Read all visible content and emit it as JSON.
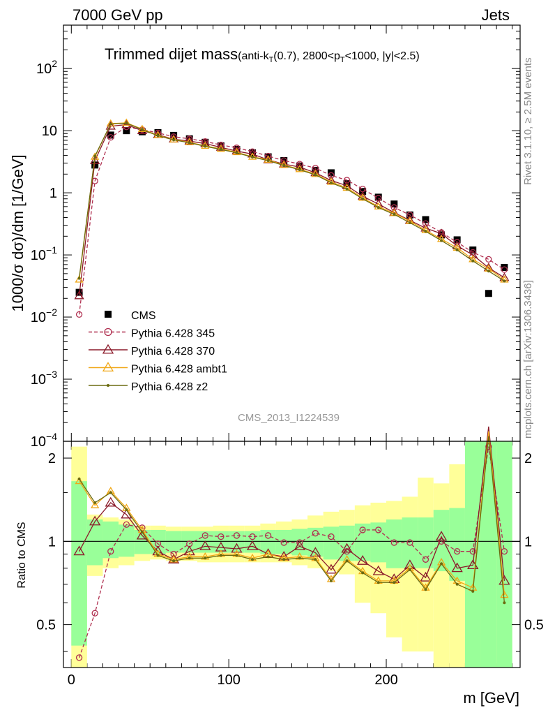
{
  "header": {
    "left": "7000 GeV pp",
    "right": "Jets"
  },
  "plot": {
    "title": "Trimmed dijet mass",
    "title_sub": "(anti-k",
    "title_sub_T": "T",
    "title_sub_rest": "(0.7), 2800<p",
    "title_sub_T2": "T",
    "title_sub_rest2": "<1000, |y|<2.5)",
    "ylabel": "1000/σ dσ)/dm [1/GeV]",
    "ratio_ylabel": "Ratio to CMS",
    "xlabel": "m [GeV]",
    "analysis_id": "CMS_2013_I1224539",
    "side_rivet": "Rivet 3.1.10, ≥ 2.5M events",
    "side_mcplots": "mcplots.cern.ch [arXiv:1306.3436]"
  },
  "legend": [
    {
      "label": "CMS",
      "color": "#000000",
      "marker": "square"
    },
    {
      "label": "Pythia 6.428 345",
      "color": "#b03050",
      "marker": "circle",
      "dashed": true
    },
    {
      "label": "Pythia 6.428 370",
      "color": "#8b1a2a",
      "marker": "triangle"
    },
    {
      "label": "Pythia 6.428 ambt1",
      "color": "#f0a818",
      "marker": "triangle"
    },
    {
      "label": "Pythia 6.428 z2",
      "color": "#6b6b10",
      "marker": "dot"
    }
  ],
  "chart_data": {
    "type": "line",
    "xlabel": "m [GeV]",
    "ylabel": "1000/σ dσ)/dm [1/GeV]",
    "yscale": "log",
    "xlim": [
      -5,
      285
    ],
    "ylim": [
      0.0001,
      500
    ],
    "x_ticks": [
      "0",
      "100",
      "200"
    ],
    "y_ticks": [
      "10^-4",
      "10^-3",
      "10^-2",
      "10^-1",
      "1",
      "10",
      "10^2"
    ],
    "x": [
      5,
      15,
      25,
      35,
      45,
      55,
      65,
      75,
      85,
      95,
      105,
      115,
      125,
      135,
      145,
      155,
      165,
      175,
      185,
      195,
      205,
      215,
      225,
      235,
      245,
      255,
      265,
      275
    ],
    "series": [
      {
        "name": "CMS",
        "values": [
          0.025,
          2.8,
          8.5,
          10.0,
          9.6,
          9.3,
          8.4,
          7.4,
          6.5,
          5.7,
          5.0,
          4.4,
          3.8,
          3.3,
          2.7,
          2.3,
          2.1,
          1.4,
          1.05,
          0.85,
          0.66,
          0.44,
          0.37,
          0.21,
          0.175,
          0.12,
          0.024,
          0.063
        ]
      },
      {
        "name": "Pythia 6.428 345",
        "values": [
          0.011,
          1.55,
          7.8,
          11.5,
          10.4,
          9.2,
          8.0,
          7.4,
          6.7,
          5.9,
          5.3,
          4.6,
          3.9,
          3.3,
          2.9,
          2.5,
          1.9,
          1.6,
          1.15,
          0.82,
          0.58,
          0.44,
          0.32,
          0.23,
          0.16,
          0.11,
          0.085,
          0.058
        ]
      },
      {
        "name": "Pythia 6.428 370",
        "values": [
          0.022,
          3.3,
          11.8,
          12.5,
          10.0,
          8.6,
          7.3,
          6.8,
          6.2,
          5.4,
          4.7,
          4.2,
          3.4,
          2.9,
          2.6,
          2.1,
          1.58,
          1.3,
          0.88,
          0.66,
          0.48,
          0.36,
          0.27,
          0.22,
          0.14,
          0.1,
          0.062,
          0.043
        ]
      },
      {
        "name": "Pythia 6.428 ambt1",
        "values": [
          0.04,
          3.8,
          13.0,
          13.4,
          10.6,
          8.4,
          7.2,
          6.5,
          5.7,
          5.1,
          4.5,
          3.8,
          3.4,
          2.8,
          2.4,
          2.0,
          1.5,
          1.2,
          0.83,
          0.6,
          0.47,
          0.35,
          0.25,
          0.18,
          0.13,
          0.085,
          0.06,
          0.04
        ]
      },
      {
        "name": "Pythia 6.428 z2",
        "values": [
          0.042,
          3.9,
          12.8,
          13.2,
          10.4,
          8.3,
          7.1,
          6.4,
          5.6,
          5.0,
          4.4,
          3.75,
          3.3,
          2.75,
          2.35,
          1.95,
          1.45,
          1.15,
          0.8,
          0.58,
          0.45,
          0.33,
          0.24,
          0.17,
          0.12,
          0.08,
          0.055,
          0.038
        ]
      }
    ],
    "ratio": {
      "ylabel": "Ratio to CMS",
      "ylim": [
        0.35,
        2.3
      ],
      "y_ticks": [
        "0.5",
        "1",
        "2"
      ],
      "band_green_lo": [
        0.42,
        0.82,
        0.87,
        0.88,
        0.9,
        0.9,
        0.91,
        0.91,
        0.91,
        0.91,
        0.91,
        0.91,
        0.9,
        0.9,
        0.89,
        0.88,
        0.86,
        0.85,
        0.85,
        0.84,
        0.8,
        0.8,
        0.8,
        0.78,
        0.72,
        0.3,
        0.3,
        0.3
      ],
      "band_green_hi": [
        1.65,
        1.2,
        1.18,
        1.15,
        1.1,
        1.1,
        1.09,
        1.09,
        1.09,
        1.09,
        1.09,
        1.09,
        1.1,
        1.1,
        1.11,
        1.12,
        1.13,
        1.14,
        1.16,
        1.17,
        1.2,
        1.22,
        1.22,
        1.3,
        1.32,
        2.3,
        2.3,
        2.3
      ],
      "band_yellow_lo": [
        0.3,
        0.75,
        0.8,
        0.82,
        0.85,
        0.86,
        0.85,
        0.85,
        0.84,
        0.84,
        0.84,
        0.84,
        0.84,
        0.84,
        0.82,
        0.8,
        0.78,
        0.76,
        0.6,
        0.55,
        0.45,
        0.4,
        0.4,
        0.3,
        0.3,
        0.3,
        0.3,
        0.3
      ],
      "band_yellow_hi": [
        2.2,
        1.25,
        1.22,
        1.2,
        1.14,
        1.14,
        1.13,
        1.13,
        1.13,
        1.14,
        1.14,
        1.14,
        1.16,
        1.18,
        1.2,
        1.24,
        1.28,
        1.3,
        1.35,
        1.38,
        1.4,
        1.45,
        1.7,
        1.62,
        1.9,
        1.75,
        2.3,
        2.3
      ],
      "series": [
        {
          "name": "Pythia 6.428 345",
          "values": [
            0.38,
            0.55,
            0.92,
            1.15,
            1.12,
            0.98,
            0.9,
            0.98,
            1.05,
            1.04,
            1.05,
            1.04,
            1.05,
            0.99,
            0.99,
            1.07,
            1.04,
            0.92,
            1.1,
            1.1,
            0.99,
            0.99,
            0.86,
            1.0,
            0.92,
            0.92,
            2.2,
            0.92
          ]
        },
        {
          "name": "Pythia 6.428 370",
          "values": [
            0.92,
            1.18,
            1.38,
            1.25,
            1.05,
            0.92,
            0.86,
            0.92,
            0.96,
            0.95,
            0.94,
            0.96,
            0.9,
            0.88,
            0.96,
            0.91,
            0.79,
            0.94,
            0.85,
            0.78,
            0.73,
            0.82,
            0.74,
            1.04,
            0.8,
            0.82,
            2.6,
            0.72
          ]
        },
        {
          "name": "Pythia 6.428 ambt1",
          "values": [
            1.65,
            1.35,
            1.52,
            1.32,
            1.1,
            0.9,
            0.86,
            0.88,
            0.88,
            0.9,
            0.9,
            0.87,
            0.9,
            0.87,
            0.88,
            0.87,
            0.73,
            0.86,
            0.78,
            0.72,
            0.72,
            0.8,
            0.68,
            0.84,
            0.72,
            0.68,
            2.5,
            0.64
          ]
        },
        {
          "name": "Pythia 6.428 z2",
          "values": [
            1.68,
            1.38,
            1.5,
            1.3,
            1.08,
            0.89,
            0.85,
            0.87,
            0.87,
            0.89,
            0.89,
            0.86,
            0.88,
            0.86,
            0.87,
            0.86,
            0.72,
            0.85,
            0.77,
            0.71,
            0.71,
            0.79,
            0.67,
            0.83,
            0.7,
            0.66,
            2.4,
            0.6
          ]
        }
      ]
    }
  }
}
